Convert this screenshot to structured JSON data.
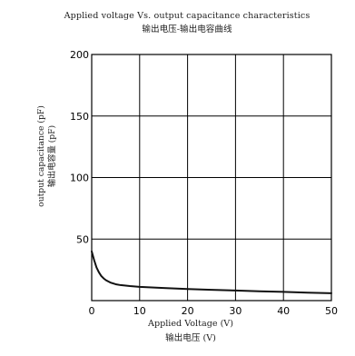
{
  "chart_data": {
    "type": "line",
    "title": "Applied voltage Vs. output capacitance characteristics",
    "subtitle": "输出电压-输出电容曲线",
    "xlabel": "Applied Voltage (V)",
    "xlabel_zh": "输出电压 (V)",
    "ylabel": "output capacitance (pF)",
    "ylabel_zh": "输出电容量 (pF)",
    "xlim": [
      0,
      50
    ],
    "ylim": [
      0,
      200
    ],
    "x_ticks": [
      0,
      10,
      20,
      30,
      40,
      50
    ],
    "y_ticks": [
      50,
      100,
      150,
      200
    ],
    "grid": true,
    "series": [
      {
        "x": [
          0.0,
          0.5,
          1.0,
          1.5,
          2.0,
          2.5,
          3.0,
          4.0,
          5.0,
          6.0,
          8.0,
          10.0,
          15.0,
          20.0,
          25.0,
          30.0,
          35.0,
          40.0,
          45.0,
          50.0
        ],
        "values": [
          40,
          33,
          27,
          23,
          20,
          18,
          16.5,
          14.5,
          13.3,
          12.6,
          11.8,
          11.2,
          10.2,
          9.4,
          8.8,
          8.2,
          7.6,
          7.1,
          6.5,
          6.0
        ]
      }
    ]
  }
}
